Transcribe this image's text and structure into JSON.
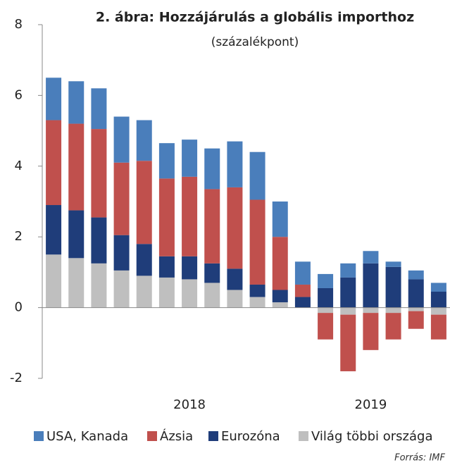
{
  "chart_data": {
    "type": "stacked_bar",
    "title": "2. ábra: Hozzájárulás a globális importhoz",
    "subtitle": "(százalékpont)",
    "source": "Forrás: IMF",
    "categories": [
      null,
      null,
      null,
      null,
      null,
      null,
      "2018",
      null,
      null,
      null,
      null,
      null,
      null,
      null,
      "2019",
      null,
      null,
      null
    ],
    "series": [
      {
        "name": "Világ többi országa",
        "color": "#bfbfbf",
        "values": [
          1.5,
          1.4,
          1.25,
          1.05,
          0.9,
          0.85,
          0.8,
          0.7,
          0.5,
          0.3,
          0.15,
          0,
          -0.15,
          -0.2,
          -0.15,
          -0.15,
          -0.1,
          -0.2
        ]
      },
      {
        "name": "Eurozóna",
        "color": "#1f3d7a",
        "values": [
          1.4,
          1.35,
          1.3,
          1.0,
          0.9,
          0.6,
          0.65,
          0.55,
          0.6,
          0.35,
          0.35,
          0.3,
          0.55,
          0.85,
          1.25,
          1.15,
          0.8,
          0.45
        ]
      },
      {
        "name": "Ázsia",
        "color": "#c0504d",
        "values": [
          2.4,
          2.45,
          2.5,
          2.05,
          2.35,
          2.2,
          2.25,
          2.1,
          2.3,
          2.4,
          1.5,
          0.35,
          -0.75,
          -1.6,
          -1.05,
          -0.75,
          -0.5,
          -0.7
        ]
      },
      {
        "name": "USA, Kanada",
        "color": "#4a7ebb",
        "values": [
          1.2,
          1.2,
          1.15,
          1.3,
          1.15,
          1.0,
          1.05,
          1.15,
          1.3,
          1.35,
          1.0,
          0.65,
          0.4,
          0.4,
          0.35,
          0.15,
          0.25,
          0.25
        ]
      }
    ],
    "legend_order": [
      3,
      2,
      1,
      0
    ],
    "ylim": [
      -2,
      8
    ],
    "yticks": [
      -2,
      0,
      2,
      4,
      6,
      8
    ]
  }
}
